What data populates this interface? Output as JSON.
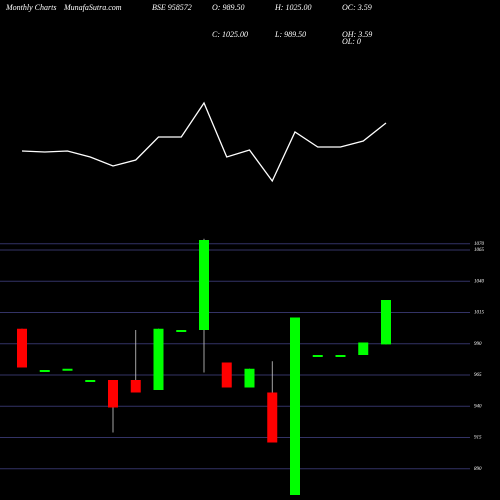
{
  "header": {
    "left": "Monthly Charts",
    "site": "MunafaSutra.com",
    "symbol": "BSE 958572",
    "stats": [
      [
        "O: 989.50",
        "C: 1025.00"
      ],
      [
        "H: 1025.00",
        "L: 989.50"
      ],
      [
        "OC: 3.59",
        "OH: 3.59",
        "OL: 0"
      ]
    ]
  },
  "chart_data": [
    {
      "type": "line",
      "color": "#ffffff",
      "values": [
        49,
        48,
        49,
        43,
        34,
        40,
        63,
        63,
        97,
        43,
        50,
        19,
        68,
        53,
        53,
        59,
        77
      ],
      "ylim": [
        19,
        97
      ]
    },
    {
      "type": "candlestick",
      "up_color": "#00ff00",
      "down_color": "#ff0000",
      "grid": true,
      "grid_color": "#333366",
      "open": [
        1002,
        969,
        970,
        961,
        961,
        961,
        953,
        1001,
        1001,
        975,
        955,
        951,
        869,
        981,
        981,
        981,
        989.5
      ],
      "high": [
        1002,
        969,
        970,
        961,
        961,
        1001,
        1002,
        1001,
        1074,
        975,
        970,
        976,
        1011,
        981,
        981,
        991,
        1025
      ],
      "low": [
        971,
        969,
        970,
        961,
        919,
        951,
        953,
        1001,
        967,
        955,
        955,
        911,
        869,
        981,
        981,
        981,
        989.5
      ],
      "close": [
        971,
        969,
        970,
        961,
        939,
        951,
        1002,
        1001,
        1073,
        955,
        970,
        911,
        1011,
        981,
        981,
        991,
        1025
      ],
      "ylim": [
        865,
        1077
      ],
      "yticks": [
        1070,
        1065,
        1040,
        1015,
        990,
        965,
        940,
        915,
        890
      ]
    }
  ]
}
